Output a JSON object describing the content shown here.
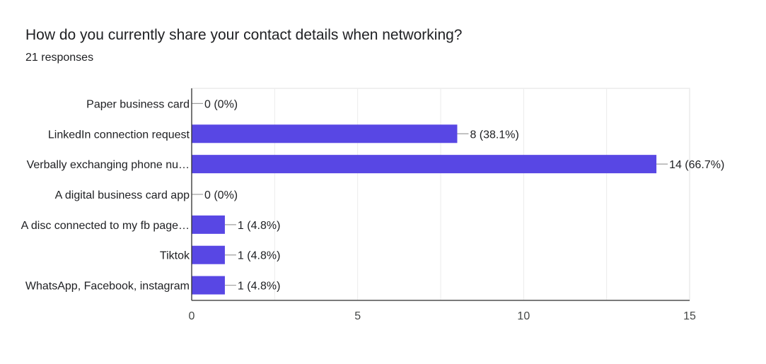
{
  "question": {
    "title": "How do you currently share your contact details when networking?",
    "responses": "21 responses"
  },
  "colors": {
    "bar": "#5847e4",
    "grid": "#ebebeb",
    "axis": "#333333",
    "leader": "#9e9e9e"
  },
  "chart_data": {
    "type": "bar",
    "orientation": "horizontal",
    "categories": [
      "Paper business card",
      "LinkedIn connection request",
      "Verbally exchanging phone nu…",
      "A digital business card app",
      "A disc connected to my fb page…",
      "Tiktok",
      "WhatsApp, Facebook, instagram"
    ],
    "values": [
      0,
      8,
      14,
      0,
      1,
      1,
      1
    ],
    "data_labels": [
      "0 (0%)",
      "8 (38.1%)",
      "14 (66.7%)",
      "0 (0%)",
      "1 (4.8%)",
      "1 (4.8%)",
      "1 (4.8%)"
    ],
    "xlim": [
      0,
      15
    ],
    "xticks": [
      0,
      5,
      10,
      15
    ],
    "grid": true,
    "legend": "none"
  }
}
